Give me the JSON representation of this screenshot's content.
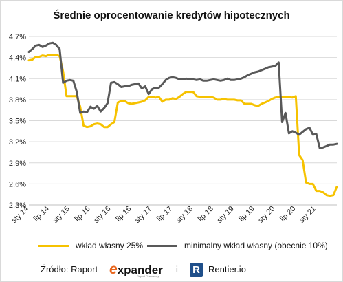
{
  "chart_data": {
    "type": "line",
    "title": "Średnie oprocentowanie kredytów hipotecznych",
    "xlabel": "",
    "ylabel": "",
    "x_tick_labels": [
      "sty 14",
      "lip 14",
      "sty 15",
      "lip 15",
      "sty 16",
      "lip 16",
      "sty 17",
      "lip 17",
      "sty 18",
      "lip 18",
      "sty 19",
      "lip 19",
      "sty 20",
      "lip 20",
      "sty 21"
    ],
    "x_start": "2014-01",
    "x_end": "2021-07",
    "y_ticks": [
      "2,3%",
      "2,6%",
      "2,9%",
      "3,2%",
      "3,5%",
      "3,8%",
      "4,1%",
      "4,4%",
      "4,7%"
    ],
    "ylim": [
      2.3,
      4.7
    ],
    "grid": true,
    "legend_position": "bottom",
    "series": [
      {
        "name": "wkład własny 25%",
        "color": "#f6c200",
        "months": [
          "2014-01",
          "2014-02",
          "2014-03",
          "2014-04",
          "2014-05",
          "2014-06",
          "2014-07",
          "2014-08",
          "2014-09",
          "2014-10",
          "2014-11",
          "2014-12",
          "2015-01",
          "2015-02",
          "2015-03",
          "2015-04",
          "2015-05",
          "2015-06",
          "2015-07",
          "2015-08",
          "2015-09",
          "2015-10",
          "2015-11",
          "2015-12",
          "2016-01",
          "2016-02",
          "2016-03",
          "2016-04",
          "2016-05",
          "2016-06",
          "2016-07",
          "2016-08",
          "2016-09",
          "2016-10",
          "2016-11",
          "2016-12",
          "2017-01",
          "2017-02",
          "2017-03",
          "2017-04",
          "2017-05",
          "2017-06",
          "2017-07",
          "2017-08",
          "2017-09",
          "2017-10",
          "2017-11",
          "2017-12",
          "2018-01",
          "2018-02",
          "2018-03",
          "2018-04",
          "2018-05",
          "2018-06",
          "2018-07",
          "2018-08",
          "2018-09",
          "2018-10",
          "2018-11",
          "2018-12",
          "2019-01",
          "2019-02",
          "2019-03",
          "2019-04",
          "2019-05",
          "2019-06",
          "2019-07",
          "2019-08",
          "2019-09",
          "2019-10",
          "2019-11",
          "2019-12",
          "2020-01",
          "2020-02",
          "2020-03",
          "2020-04",
          "2020-05",
          "2020-06",
          "2020-07",
          "2020-08",
          "2020-09",
          "2020-10",
          "2020-11",
          "2020-12",
          "2021-01",
          "2021-02",
          "2021-03",
          "2021-04",
          "2021-05",
          "2021-06",
          "2021-07"
        ],
        "values": [
          4.36,
          4.37,
          4.41,
          4.41,
          4.43,
          4.42,
          4.44,
          4.44,
          4.44,
          4.42,
          4.2,
          3.85,
          3.85,
          3.85,
          3.85,
          3.7,
          3.43,
          3.41,
          3.42,
          3.45,
          3.46,
          3.45,
          3.41,
          3.41,
          3.45,
          3.48,
          3.76,
          3.78,
          3.78,
          3.75,
          3.74,
          3.75,
          3.76,
          3.77,
          3.79,
          3.84,
          3.84,
          3.83,
          3.84,
          3.77,
          3.8,
          3.8,
          3.82,
          3.81,
          3.84,
          3.88,
          3.91,
          3.91,
          3.91,
          3.85,
          3.84,
          3.84,
          3.84,
          3.84,
          3.83,
          3.8,
          3.8,
          3.81,
          3.8,
          3.8,
          3.8,
          3.79,
          3.79,
          3.74,
          3.74,
          3.74,
          3.72,
          3.71,
          3.74,
          3.76,
          3.78,
          3.81,
          3.83,
          3.84,
          3.84,
          3.84,
          3.84,
          3.83,
          3.85,
          3.01,
          2.94,
          2.62,
          2.6,
          2.6,
          2.5,
          2.5,
          2.48,
          2.44,
          2.43,
          2.44,
          2.56
        ]
      },
      {
        "name": "minimalny wkład własny (obecnie 10%)",
        "color": "#595959",
        "months": [
          "2014-01",
          "2014-02",
          "2014-03",
          "2014-04",
          "2014-05",
          "2014-06",
          "2014-07",
          "2014-08",
          "2014-09",
          "2014-10",
          "2014-11",
          "2014-12",
          "2015-01",
          "2015-02",
          "2015-03",
          "2015-04",
          "2015-05",
          "2015-06",
          "2015-07",
          "2015-08",
          "2015-09",
          "2015-10",
          "2015-11",
          "2015-12",
          "2016-01",
          "2016-02",
          "2016-03",
          "2016-04",
          "2016-05",
          "2016-06",
          "2016-07",
          "2016-08",
          "2016-09",
          "2016-10",
          "2016-11",
          "2016-12",
          "2017-01",
          "2017-02",
          "2017-03",
          "2017-04",
          "2017-05",
          "2017-06",
          "2017-07",
          "2017-08",
          "2017-09",
          "2017-10",
          "2017-11",
          "2017-12",
          "2018-01",
          "2018-02",
          "2018-03",
          "2018-04",
          "2018-05",
          "2018-06",
          "2018-07",
          "2018-08",
          "2018-09",
          "2018-10",
          "2018-11",
          "2018-12",
          "2019-01",
          "2019-02",
          "2019-03",
          "2019-04",
          "2019-05",
          "2019-06",
          "2019-07",
          "2019-08",
          "2019-09",
          "2019-10",
          "2019-11",
          "2019-12",
          "2020-01",
          "2020-02",
          "2020-03",
          "2020-04",
          "2020-05",
          "2020-06",
          "2020-07",
          "2020-08",
          "2020-09",
          "2020-10",
          "2020-11",
          "2020-12",
          "2021-01",
          "2021-02",
          "2021-03",
          "2021-04",
          "2021-05",
          "2021-06",
          "2021-07"
        ],
        "values": [
          4.48,
          4.52,
          4.57,
          4.58,
          4.55,
          4.57,
          4.6,
          4.61,
          4.58,
          4.52,
          4.04,
          4.07,
          4.08,
          4.07,
          3.91,
          3.61,
          3.63,
          3.62,
          3.7,
          3.67,
          3.71,
          3.63,
          3.68,
          3.75,
          4.04,
          4.05,
          4.02,
          3.98,
          3.99,
          3.99,
          4.01,
          4.02,
          4.03,
          3.96,
          3.99,
          3.88,
          3.95,
          3.97,
          3.97,
          4.02,
          4.08,
          4.11,
          4.12,
          4.11,
          4.09,
          4.09,
          4.1,
          4.09,
          4.09,
          4.08,
          4.09,
          4.07,
          4.07,
          4.08,
          4.09,
          4.08,
          4.07,
          4.08,
          4.1,
          4.08,
          4.08,
          4.09,
          4.1,
          4.12,
          4.15,
          4.17,
          4.19,
          4.2,
          4.22,
          4.24,
          4.26,
          4.27,
          4.28,
          4.33,
          3.48,
          3.61,
          3.32,
          3.35,
          3.33,
          3.3,
          3.34,
          3.38,
          3.4,
          3.3,
          3.31,
          3.11,
          3.12,
          3.14,
          3.16,
          3.16,
          3.17
        ]
      }
    ]
  },
  "legend": {
    "series1": "wkład własny 25%",
    "series2": "minimalny wkład własny (obecnie 10%)"
  },
  "footer": {
    "source_label": "Źródło: Raport",
    "expander_e": "e",
    "expander_rest": "xpander",
    "expander_sub": "Raport Finansowy",
    "conjunction": "i",
    "rentier_logo_letter": "R",
    "rentier_text": "Rentier.io"
  }
}
